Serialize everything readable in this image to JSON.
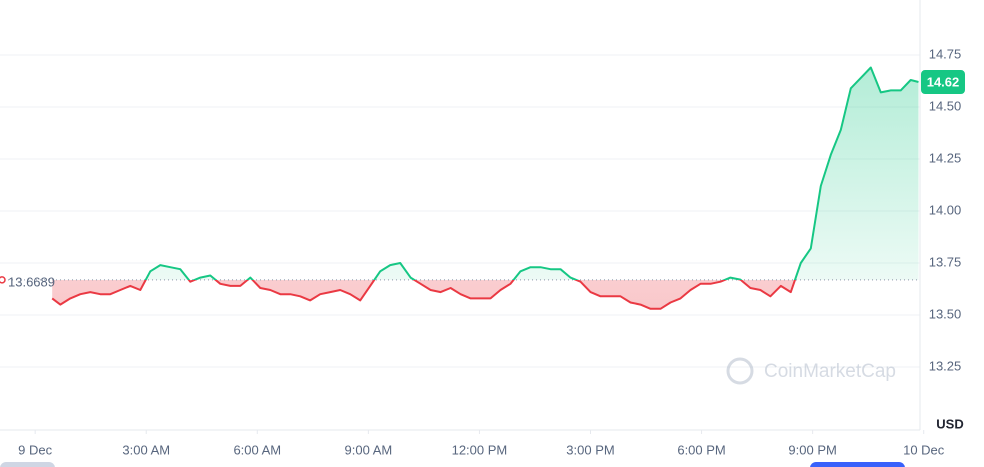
{
  "chart_data": {
    "type": "line",
    "currency": "USD",
    "watermark": "CoinMarketCap",
    "baseline": 13.6689,
    "last_price": 14.62,
    "up_color": "#16c784",
    "down_color": "#ea3943",
    "grid": true,
    "xlim": [
      -0.95,
      23.9
    ],
    "ylim": [
      12.95,
      15.0
    ],
    "xticks": [
      {
        "value": 0,
        "label": "9 Dec"
      },
      {
        "value": 3,
        "label": "3:00 AM"
      },
      {
        "value": 6,
        "label": "6:00 AM"
      },
      {
        "value": 9,
        "label": "9:00 AM"
      },
      {
        "value": 12,
        "label": "12:00 PM"
      },
      {
        "value": 15,
        "label": "3:00 PM"
      },
      {
        "value": 18,
        "label": "6:00 PM"
      },
      {
        "value": 21,
        "label": "9:00 PM"
      },
      {
        "value": 24,
        "label": "10 Dec"
      }
    ],
    "yticks": [
      13.25,
      {
        "value": 13.5,
        "label": "13.50"
      },
      13.75,
      {
        "value": 14,
        "label": "14.00"
      },
      14.25,
      {
        "value": 14.5,
        "label": "14.50"
      },
      14.75
    ],
    "x": [
      0.46,
      0.68,
      0.95,
      1.22,
      1.49,
      1.76,
      2.03,
      2.3,
      2.57,
      2.84,
      3.11,
      3.38,
      3.65,
      3.92,
      4.19,
      4.46,
      4.73,
      5.0,
      5.27,
      5.54,
      5.81,
      6.08,
      6.35,
      6.62,
      6.89,
      7.16,
      7.43,
      7.7,
      7.97,
      8.24,
      8.51,
      8.78,
      9.05,
      9.32,
      9.59,
      9.86,
      10.14,
      10.41,
      10.68,
      10.95,
      11.22,
      11.49,
      11.76,
      12.03,
      12.3,
      12.57,
      12.84,
      13.11,
      13.38,
      13.65,
      13.92,
      14.19,
      14.46,
      14.73,
      15.0,
      15.27,
      15.54,
      15.81,
      16.08,
      16.35,
      16.62,
      16.89,
      17.16,
      17.43,
      17.7,
      17.97,
      18.24,
      18.51,
      18.78,
      19.05,
      19.32,
      19.59,
      19.86,
      20.14,
      20.41,
      20.68,
      20.95,
      21.22,
      21.49,
      21.76,
      22.03,
      22.3,
      22.57,
      22.84,
      23.11,
      23.38,
      23.65,
      23.86
    ],
    "values": [
      13.58,
      13.55,
      13.58,
      13.6,
      13.61,
      13.6,
      13.6,
      13.62,
      13.64,
      13.62,
      13.71,
      13.74,
      13.73,
      13.72,
      13.66,
      13.68,
      13.69,
      13.65,
      13.64,
      13.64,
      13.68,
      13.63,
      13.62,
      13.6,
      13.6,
      13.59,
      13.57,
      13.6,
      13.61,
      13.62,
      13.6,
      13.57,
      13.64,
      13.71,
      13.74,
      13.75,
      13.68,
      13.65,
      13.62,
      13.61,
      13.63,
      13.6,
      13.58,
      13.58,
      13.58,
      13.62,
      13.65,
      13.71,
      13.73,
      13.73,
      13.72,
      13.72,
      13.68,
      13.66,
      13.61,
      13.59,
      13.59,
      13.59,
      13.56,
      13.55,
      13.53,
      13.53,
      13.56,
      13.58,
      13.62,
      13.65,
      13.65,
      13.66,
      13.68,
      13.67,
      13.63,
      13.62,
      13.59,
      13.64,
      13.61,
      13.75,
      13.82,
      14.12,
      14.27,
      14.39,
      14.59,
      14.64,
      14.69,
      14.57,
      14.58,
      14.58,
      14.63,
      14.62
    ]
  }
}
